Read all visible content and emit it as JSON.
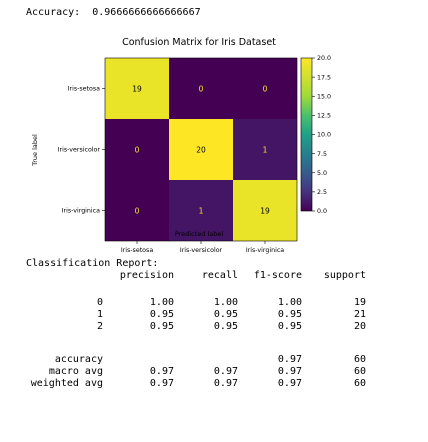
{
  "accuracy_line": {
    "label": "Accuracy:",
    "value": "0.9666666666666667"
  },
  "chart_data": {
    "type": "heatmap",
    "title": "Confusion Matrix for Iris Dataset",
    "xlabel": "Predicted label",
    "ylabel": "True label",
    "x_categories": [
      "Iris-setosa",
      "Iris-versicolor",
      "Iris-virginica"
    ],
    "y_categories": [
      "Iris-setosa",
      "Iris-versicolor",
      "Iris-virginica"
    ],
    "values": [
      [
        19,
        0,
        0
      ],
      [
        0,
        20,
        1
      ],
      [
        0,
        1,
        19
      ]
    ],
    "colormap": "viridis",
    "colorbar": {
      "range": [
        0,
        20
      ],
      "ticks": [
        "0.0",
        "2.5",
        "5.0",
        "7.5",
        "10.0",
        "12.5",
        "15.0",
        "17.5",
        "20.0"
      ]
    },
    "colors": {
      "low": "#440154",
      "high": "#fde725",
      "text_on_light": "#000000",
      "text_on_dark": "#fde725"
    }
  },
  "report": {
    "title": "Classification Report:",
    "headers": [
      "precision",
      "recall",
      "f1-score",
      "support"
    ],
    "rows": [
      {
        "label": "0",
        "precision": "1.00",
        "recall": "1.00",
        "f1": "1.00",
        "support": "19"
      },
      {
        "label": "1",
        "precision": "0.95",
        "recall": "0.95",
        "f1": "0.95",
        "support": "21"
      },
      {
        "label": "2",
        "precision": "0.95",
        "recall": "0.95",
        "f1": "0.95",
        "support": "20"
      }
    ],
    "summary": [
      {
        "label": "accuracy",
        "precision": "",
        "recall": "",
        "f1": "0.97",
        "support": "60"
      },
      {
        "label": "macro avg",
        "precision": "0.97",
        "recall": "0.97",
        "f1": "0.97",
        "support": "60"
      },
      {
        "label": "weighted avg",
        "precision": "0.97",
        "recall": "0.97",
        "f1": "0.97",
        "support": "60"
      }
    ]
  }
}
